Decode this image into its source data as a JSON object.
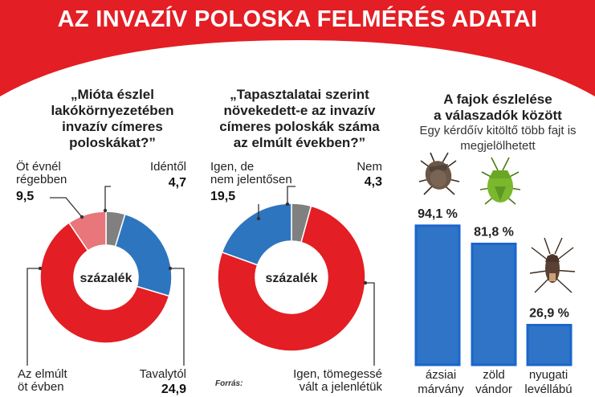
{
  "header": {
    "title": "AZ INVAZÍV POLOSKA FELMÉRÉS ADATAI"
  },
  "colors": {
    "red": "#e31e24",
    "blue": "#2e75c0",
    "pink": "#e8767a",
    "gray": "#808080",
    "bar_blue": "#2f74c6",
    "bar_border": "#1a66cc"
  },
  "chart1": {
    "title_lines": [
      "„Mióta észlel",
      "lakókörnyezetében",
      "invazív címeres",
      "poloskákat?”"
    ],
    "center": "százalék",
    "labels": {
      "otevnel": [
        "Öt évnél",
        "régebben"
      ],
      "identol": [
        "Idéntől"
      ],
      "tavaly": [
        "Tavalytól"
      ],
      "elmult": [
        "Az elmúlt",
        "öt évben"
      ]
    },
    "values": {
      "otevnel": "9,5",
      "identol": "4,7",
      "tavaly": "24,9"
    }
  },
  "chart2": {
    "title_lines": [
      "„Tapasztalatai szerint",
      "növekedett-e az invazív",
      "címeres poloskák száma",
      "az elmúlt években?”"
    ],
    "center": "százalék",
    "labels": {
      "igen_de": [
        "Igen, de",
        "nem jelentősen"
      ],
      "nem": [
        "Nem"
      ],
      "tomeges": [
        "Igen, tömegessé",
        "vált a jelenlétük"
      ]
    },
    "values": {
      "igen_de": "19,5",
      "nem": "4,3"
    }
  },
  "chart3": {
    "title_lines": [
      "A fajok észlelése",
      "a válaszadók között"
    ],
    "subtitle_lines": [
      "Egy kérdőív kitöltő több fajt is",
      "megjelölhetett"
    ],
    "value_labels": [
      "94,1 %",
      "81,8 %",
      "26,9 %"
    ],
    "category_lines": [
      [
        "ázsiai",
        "márvány"
      ],
      [
        "zöld",
        "vándor"
      ],
      [
        "nyugati",
        "levéllábú"
      ]
    ]
  },
  "source_label": "Forrás:",
  "chart_data": [
    {
      "type": "pie",
      "title": "„Mióta észlel lakókörnyezetében invazív címeres poloskákat?”",
      "center_label": "százalék",
      "slices": [
        {
          "label": "Idéntől",
          "value": 4.7,
          "color": "#808080"
        },
        {
          "label": "Tavalytól",
          "value": 24.9,
          "color": "#2e75c0"
        },
        {
          "label": "Az elmúlt öt évben",
          "value": 60.9,
          "color": "#e31e24"
        },
        {
          "label": "Öt évnél régebben",
          "value": 9.5,
          "color": "#e8767a"
        }
      ]
    },
    {
      "type": "pie",
      "title": "„Tapasztalatai szerint növekedett-e az invazív címeres poloskák száma az elmúlt években?”",
      "center_label": "százalék",
      "slices": [
        {
          "label": "Nem",
          "value": 4.3,
          "color": "#808080"
        },
        {
          "label": "Igen, tömegessé vált a jelenlétük",
          "value": 76.2,
          "color": "#e31e24"
        },
        {
          "label": "Igen, de nem jelentősen",
          "value": 19.5,
          "color": "#2e75c0"
        }
      ]
    },
    {
      "type": "bar",
      "title": "A fajok észlelése a válaszadók között",
      "subtitle": "Egy kérdőív kitöltő több fajt is megjelölhetett",
      "categories": [
        "ázsiai márvány",
        "zöld vándor",
        "nyugati levéllábú"
      ],
      "values": [
        94.1,
        81.8,
        26.9
      ],
      "unit": "%"
    }
  ]
}
